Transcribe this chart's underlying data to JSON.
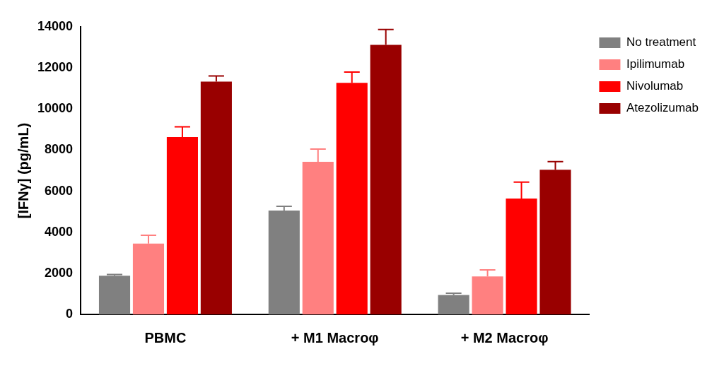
{
  "chart_data": {
    "type": "bar",
    "ylabel": "[IFNγ] (pg/mL)",
    "categories": [
      "PBMC",
      "+ M1 Macroφ",
      "+ M2 Macroφ"
    ],
    "series": [
      {
        "name": "No treatment",
        "color": "#808080",
        "values": [
          1880,
          5060,
          950
        ],
        "errors": [
          [
            1880,
            1940
          ],
          [
            5060,
            5260
          ],
          [
            950,
            1030
          ]
        ]
      },
      {
        "name": "Ipilimumab",
        "color": "#ff8080",
        "values": [
          3450,
          7430,
          1850
        ],
        "errors": [
          [
            3450,
            3850
          ],
          [
            7430,
            8050
          ],
          [
            1850,
            2170
          ]
        ]
      },
      {
        "name": "Nivolumab",
        "color": "#ff0000",
        "values": [
          8630,
          11270,
          5640
        ],
        "errors": [
          [
            8630,
            9130
          ],
          [
            11270,
            11800
          ],
          [
            5640,
            6440
          ]
        ]
      },
      {
        "name": "Atezolizumab",
        "color": "#990000",
        "values": [
          11330,
          13120,
          7040
        ],
        "errors": [
          [
            11330,
            11610
          ],
          [
            13120,
            13870
          ],
          [
            7040,
            7440
          ]
        ]
      }
    ],
    "ylim": [
      0,
      14000
    ],
    "yticks": [
      0,
      2000,
      4000,
      6000,
      8000,
      10000,
      12000,
      14000
    ],
    "grid": false,
    "legend": "top right"
  }
}
